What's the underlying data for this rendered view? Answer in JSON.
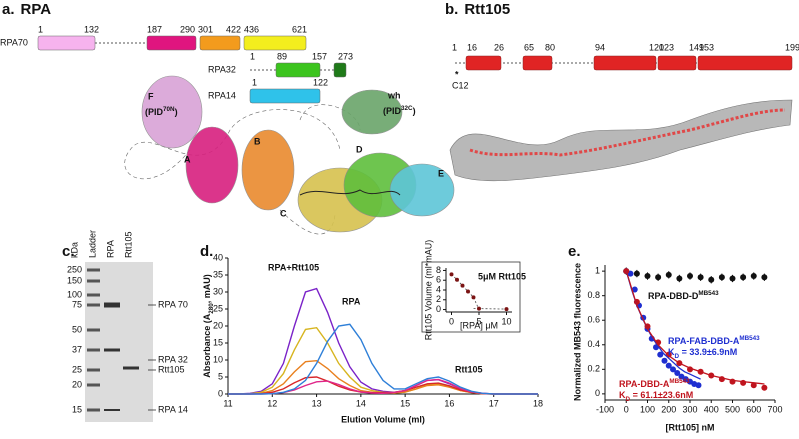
{
  "panel_a": {
    "label": "a.",
    "title": "RPA",
    "proteins": [
      {
        "name": "RPA70",
        "numbers": [
          1,
          132,
          187,
          290,
          301,
          422,
          436,
          621
        ],
        "colors": [
          "#f6b3ee",
          "#e0157f",
          "#f39b1d",
          "#f3ee1e"
        ]
      },
      {
        "name": "RPA32",
        "numbers": [
          1,
          89,
          157,
          273
        ],
        "colors": [
          "#3cc41e",
          "#1f7a19"
        ]
      },
      {
        "name": "RPA14",
        "numbers": [
          1,
          122
        ],
        "colors": [
          "#2fc2ea"
        ]
      }
    ],
    "structure_labels": [
      "F",
      "wh",
      "A",
      "B",
      "C",
      "D",
      "E"
    ],
    "structure_sublabels": [
      {
        "pre": "(PID",
        "sup": "70N",
        "post": ")"
      },
      {
        "pre": "(PID",
        "sup": "32C",
        "post": ")"
      }
    ]
  },
  "panel_b": {
    "label": "b.",
    "title": "Rtt105",
    "numbers": [
      1,
      16,
      26,
      65,
      80,
      94,
      120,
      123,
      149,
      153,
      199
    ],
    "color": "#e02424",
    "marker": "*",
    "marker_label": "C12"
  },
  "panel_c": {
    "label": "c.",
    "lane_headers": [
      "kDa",
      "Ladder",
      "RPA",
      "Rtt105"
    ],
    "ladder": [
      250,
      150,
      100,
      75,
      50,
      37,
      25,
      20,
      15
    ],
    "bands": [
      "RPA 70",
      "RPA 32",
      "Rtt105",
      "RPA 14"
    ]
  },
  "panel_d": {
    "label": "d."
  },
  "panel_e": {
    "label": "e."
  },
  "chart_data": [
    {
      "type": "line",
      "y_label": {
        "pre": "Absorbance (A",
        "sub": "280",
        "post": ", mAU)"
      },
      "x_label": "Elution Volume (ml)",
      "xlim": [
        11,
        18
      ],
      "xticks": [
        11,
        12,
        13,
        14,
        15,
        16,
        17,
        18
      ],
      "ylim": [
        0,
        40
      ],
      "yticks": [
        0,
        5,
        10,
        15,
        20,
        25,
        30,
        35,
        40
      ],
      "x": [
        11,
        11.25,
        11.5,
        11.75,
        12,
        12.25,
        12.5,
        12.75,
        13,
        13.25,
        13.5,
        13.75,
        14,
        14.25,
        14.5,
        14.75,
        15,
        15.25,
        15.5,
        15.75,
        16,
        16.25,
        16.5,
        16.75,
        17,
        17.25,
        17.5,
        17.75,
        18
      ],
      "series": [
        {
          "color": "#7a22c8",
          "values": [
            0,
            0,
            0.2,
            0.8,
            3,
            9,
            20,
            30,
            31,
            24,
            15,
            8,
            3.5,
            1.5,
            0.8,
            0.5,
            1,
            2.5,
            4,
            4.2,
            3,
            1.5,
            0.6,
            0.2,
            0,
            0,
            0,
            0,
            0
          ]
        },
        {
          "color": "#d7b51f",
          "values": [
            0,
            0,
            0.1,
            0.5,
            2,
            6,
            13,
            19,
            19.5,
            15,
            9,
            5,
            2,
            1,
            0.5,
            0.3,
            0.6,
            1.5,
            2.8,
            3,
            2.2,
            1,
            0.4,
            0.1,
            0,
            0,
            0,
            0,
            0
          ]
        },
        {
          "color": "#e9801f",
          "values": [
            0,
            0,
            0,
            0.2,
            1,
            3,
            6.5,
            9.5,
            9.8,
            7.5,
            4.5,
            2.5,
            1,
            0.5,
            0.3,
            0.3,
            0.6,
            1.5,
            2.5,
            2.7,
            2,
            1,
            0.4,
            0.1,
            0,
            0,
            0,
            0,
            0
          ]
        },
        {
          "color": "#d8262a",
          "values": [
            0,
            0,
            0,
            0.1,
            0.5,
            1.5,
            3.3,
            4.8,
            5,
            3.8,
            2.3,
            1.2,
            0.6,
            0.4,
            0.4,
            0.5,
            1,
            2,
            3,
            3.2,
            2.4,
            1.2,
            0.5,
            0.1,
            0,
            0,
            0,
            0,
            0
          ]
        },
        {
          "color": "#e0268a",
          "values": [
            0,
            0,
            0,
            0,
            0.1,
            0.4,
            1.2,
            2.5,
            3.6,
            3.8,
            2.8,
            1.5,
            0.6,
            0.3,
            0.2,
            0.4,
            1,
            2.5,
            4,
            4.3,
            3.2,
            1.6,
            0.6,
            0.2,
            0,
            0,
            0,
            0,
            0
          ]
        },
        {
          "color": "#2e7fd8",
          "values": [
            0,
            0,
            0,
            0,
            0.1,
            0.5,
            1.5,
            4,
            9,
            15.5,
            20,
            20.5,
            16,
            9,
            4,
            1.5,
            1.5,
            3,
            4.5,
            5,
            3.8,
            2,
            0.8,
            0.2,
            0,
            0,
            0,
            0,
            0
          ]
        }
      ],
      "annotations": [
        "RPA+Rtt105",
        "RPA",
        "Rtt105"
      ]
    },
    {
      "type": "scatter",
      "title": "5μM Rtt105",
      "y_label": "Rtt105 Volume (ml*mAU)",
      "x_label": "[RPA] μM",
      "xlim": [
        -1,
        11
      ],
      "xticks": [
        0,
        5,
        10
      ],
      "ylim": [
        -0.5,
        8.5
      ],
      "yticks": [
        0,
        2,
        4,
        6,
        8
      ],
      "x": [
        0,
        1,
        2,
        3,
        4,
        5,
        10
      ],
      "values": [
        7.2,
        6.1,
        4.9,
        3.7,
        2.5,
        0.2,
        0.1
      ],
      "color": "#7b1414"
    },
    {
      "type": "scatter",
      "y_label": "Normalized MB543 fluorescence",
      "x_label": "[Rtt105] nM",
      "xlim": [
        -100,
        700
      ],
      "xticks": [
        -100,
        0,
        100,
        200,
        300,
        400,
        500,
        600,
        700
      ],
      "ylim": [
        -0.05,
        1.05
      ],
      "yticks": [
        0,
        0.2,
        0.4,
        0.6,
        0.8,
        1
      ],
      "series": [
        {
          "kind": "points",
          "color": "#111111",
          "x": [
            0,
            50,
            100,
            150,
            200,
            250,
            300,
            350,
            400,
            450,
            500,
            550,
            600,
            650
          ],
          "values": [
            1,
            0.98,
            0.96,
            0.95,
            0.97,
            0.94,
            0.96,
            0.95,
            0.93,
            0.95,
            0.94,
            0.95,
            0.96,
            0.95
          ],
          "errors": [
            0.03,
            0.03,
            0.03,
            0.03,
            0.03,
            0.03,
            0.03,
            0.03,
            0.03,
            0.03,
            0.03,
            0.03,
            0.03,
            0.03
          ]
        },
        {
          "kind": "points",
          "color": "#1f2fd0",
          "x": [
            0,
            20,
            40,
            60,
            80,
            100,
            120,
            140,
            160,
            180,
            200,
            220,
            240,
            260,
            280,
            300,
            320,
            340
          ],
          "values": [
            1,
            0.98,
            0.85,
            0.72,
            0.62,
            0.53,
            0.45,
            0.38,
            0.32,
            0.27,
            0.23,
            0.2,
            0.17,
            0.14,
            0.12,
            0.1,
            0.08,
            0.07
          ]
        },
        {
          "kind": "points",
          "color": "#c0141e",
          "x": [
            0,
            50,
            100,
            150,
            200,
            250,
            300,
            350,
            400,
            450,
            500,
            550,
            600,
            650
          ],
          "values": [
            1,
            0.75,
            0.55,
            0.42,
            0.32,
            0.25,
            0.2,
            0.18,
            0.15,
            0.12,
            0.1,
            0.09,
            0.07,
            0.05
          ]
        },
        {
          "kind": "line",
          "color": "#1f2fd0",
          "x": [
            0,
            25,
            50,
            75,
            100,
            125,
            150,
            175,
            200,
            225,
            250,
            275,
            300,
            325,
            350
          ],
          "values": [
            1,
            0.85,
            0.72,
            0.62,
            0.53,
            0.45,
            0.39,
            0.33,
            0.29,
            0.25,
            0.21,
            0.18,
            0.16,
            0.14,
            0.12
          ]
        },
        {
          "kind": "line",
          "color": "#c0141e",
          "x": [
            0,
            50,
            100,
            150,
            200,
            250,
            300,
            350,
            400,
            450,
            500,
            550,
            600,
            650
          ],
          "values": [
            1,
            0.72,
            0.53,
            0.4,
            0.31,
            0.25,
            0.21,
            0.18,
            0.15,
            0.13,
            0.11,
            0.1,
            0.09,
            0.08
          ]
        }
      ],
      "annotations": [
        {
          "text": "RPA-DBD-D",
          "sup": "MB543",
          "color": "#111111"
        },
        {
          "text": "RPA-FAB-DBD-A",
          "sup": "MB543",
          "color": "#1f2fd0"
        },
        {
          "pre": "K",
          "sub": "D",
          "text": " = 33.9±6.9nM",
          "color": "#1f2fd0"
        },
        {
          "text": "RPA-DBD-A",
          "sup": "MB543",
          "color": "#c0141e"
        },
        {
          "pre": "K",
          "sub": "D",
          "text": " = 61.1±23.6nM",
          "color": "#c0141e"
        }
      ]
    }
  ]
}
